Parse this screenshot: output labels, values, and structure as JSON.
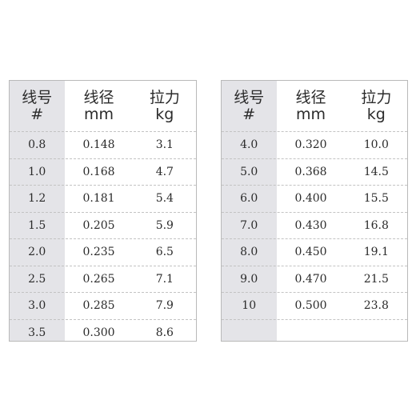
{
  "headers": [
    {
      "line1": "线号",
      "line2": "#"
    },
    {
      "line1": "线径",
      "line2": "mm"
    },
    {
      "line1": "拉力",
      "line2": "kg"
    }
  ],
  "left_rows": [
    [
      "0.8",
      "0.148",
      "3.1"
    ],
    [
      "1.0",
      "0.168",
      "4.7"
    ],
    [
      "1.2",
      "0.181",
      "5.4"
    ],
    [
      "1.5",
      "0.205",
      "5.9"
    ],
    [
      "2.0",
      "0.235",
      "6.5"
    ],
    [
      "2.5",
      "0.265",
      "7.1"
    ],
    [
      "3.0",
      "0.285",
      "7.9"
    ],
    [
      "3.5",
      "0.300",
      "8.6"
    ]
  ],
  "right_rows": [
    [
      "4.0",
      "0.320",
      "10.0"
    ],
    [
      "5.0",
      "0.368",
      "14.5"
    ],
    [
      "6.0",
      "0.400",
      "15.5"
    ],
    [
      "7.0",
      "0.430",
      "16.8"
    ],
    [
      "8.0",
      "0.450",
      "19.1"
    ],
    [
      "9.0",
      "0.470",
      "21.5"
    ],
    [
      "10",
      "0.500",
      "23.8"
    ],
    [
      "",
      "",
      ""
    ]
  ],
  "colors": {
    "first_column_background": "#e4e4e8",
    "border": "#b9b9b9",
    "text": "#2b2b2b"
  }
}
